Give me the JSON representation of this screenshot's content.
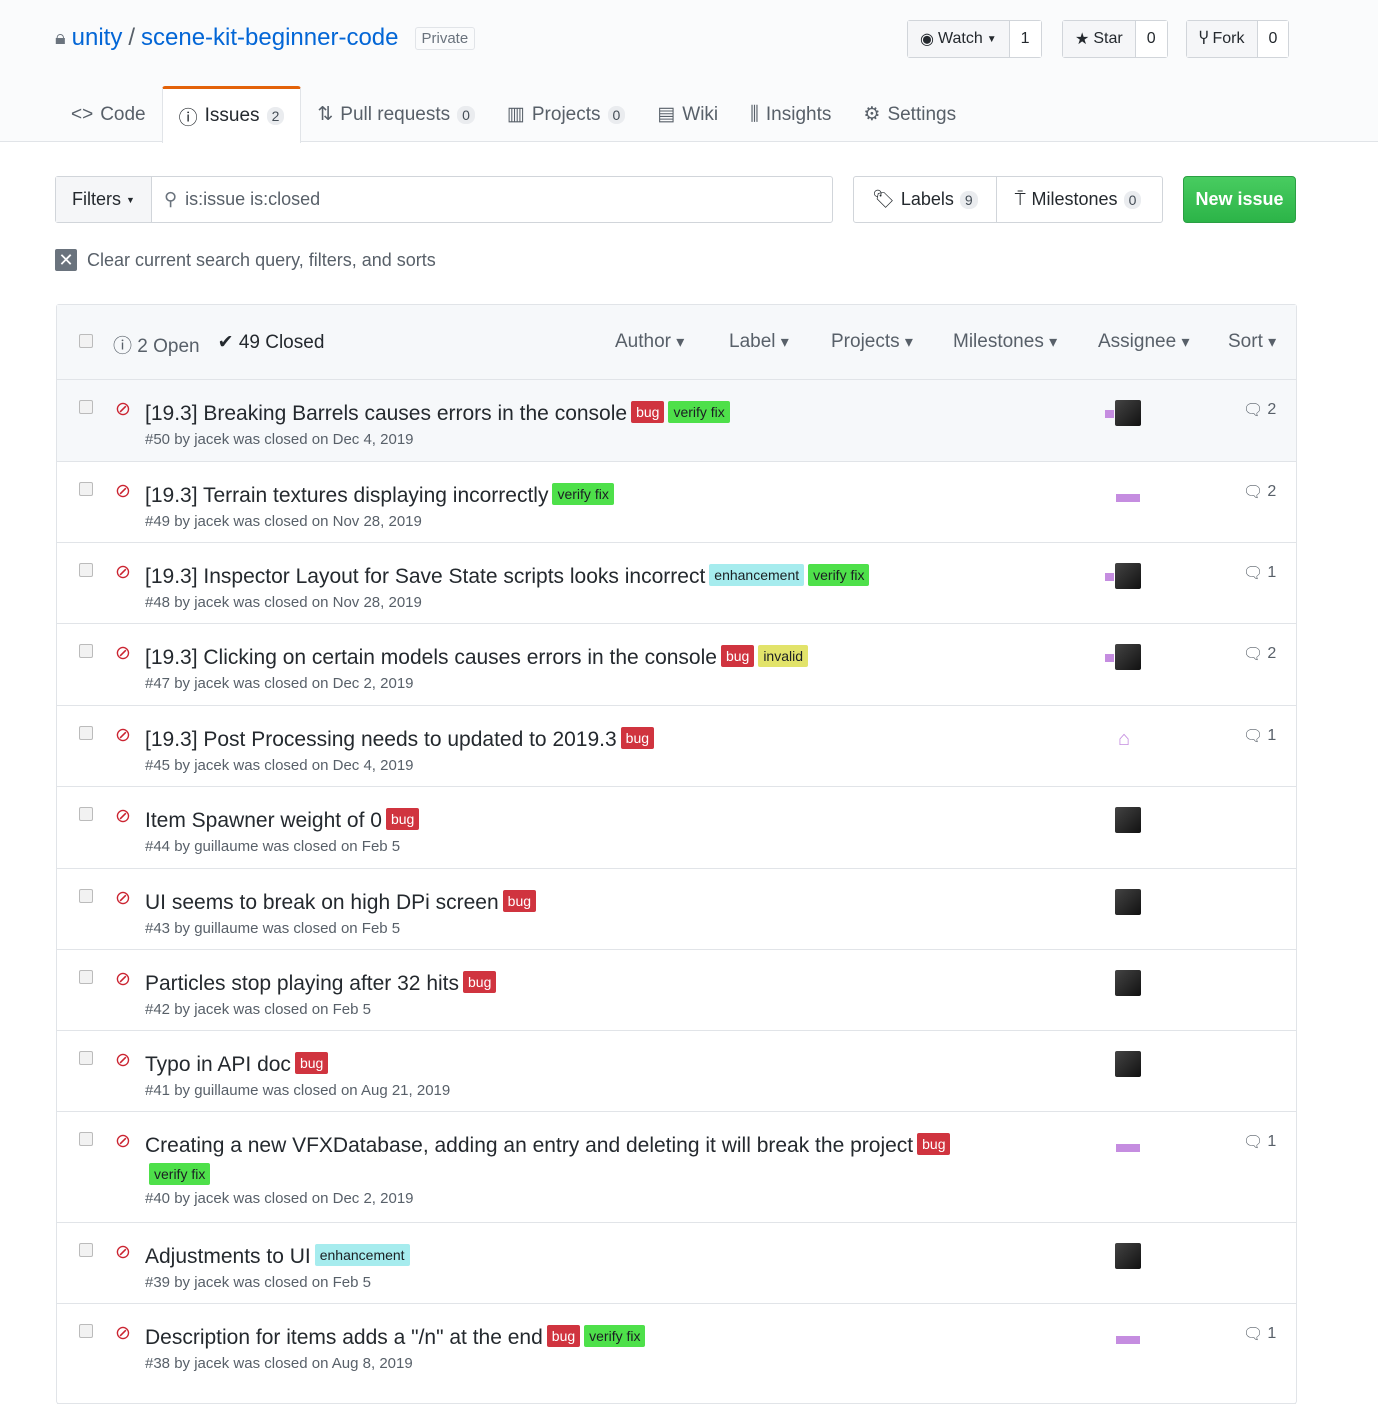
{
  "repo": {
    "owner": "unity",
    "separator": "/",
    "name": "scene-kit-beginner-code",
    "visibility": "Private"
  },
  "actions": {
    "watch": {
      "label": "Watch",
      "count": "1"
    },
    "star": {
      "label": "Star",
      "count": "0"
    },
    "fork": {
      "label": "Fork",
      "count": "0"
    }
  },
  "tabs": [
    {
      "label": "Code"
    },
    {
      "label": "Issues",
      "count": "2",
      "selected": true
    },
    {
      "label": "Pull requests",
      "count": "0"
    },
    {
      "label": "Projects",
      "count": "0"
    },
    {
      "label": "Wiki"
    },
    {
      "label": "Insights"
    },
    {
      "label": "Settings"
    }
  ],
  "filters": {
    "label": "Filters",
    "query": "is:issue is:closed"
  },
  "labels_btn": {
    "label": "Labels",
    "count": "9"
  },
  "milestones_btn": {
    "label": "Milestones",
    "count": "0"
  },
  "new_issue": "New issue",
  "clear": "Clear current search query, filters, and sorts",
  "list_header": {
    "open": "2 Open",
    "closed": "49 Closed",
    "dropdowns": [
      "Author",
      "Label",
      "Projects",
      "Milestones",
      "Assignee",
      "Sort"
    ]
  },
  "label_colors": {
    "bug": "#d0343f",
    "verify fix": "#4ee04a",
    "enhancement": "#a6ecee",
    "invalid": "#e2e36a"
  },
  "issues": [
    {
      "title": "[19.3] Breaking Barrels causes errors in the console",
      "labels": [
        "bug",
        "verify fix"
      ],
      "meta": "#50 by jacek was closed on Dec 4, 2019",
      "avatar": "pair",
      "comments": "2"
    },
    {
      "title": "[19.3] Terrain textures displaying incorrectly",
      "labels": [
        "verify fix"
      ],
      "meta": "#49 by jacek was closed on Nov 28, 2019",
      "avatar": "identicon",
      "comments": "2"
    },
    {
      "title": "[19.3] Inspector Layout for Save State scripts looks incorrect",
      "labels": [
        "enhancement",
        "verify fix"
      ],
      "meta": "#48 by jacek was closed on Nov 28, 2019",
      "avatar": "pair",
      "comments": "1"
    },
    {
      "title": "[19.3] Clicking on certain models causes errors in the console",
      "labels": [
        "bug",
        "invalid"
      ],
      "meta": "#47 by jacek was closed on Dec 2, 2019",
      "avatar": "pair",
      "comments": "2"
    },
    {
      "title": "[19.3] Post Processing needs to updated to 2019.3",
      "labels": [
        "bug"
      ],
      "meta": "#45 by jacek was closed on Dec 4, 2019",
      "avatar": "identicon2",
      "comments": "1"
    },
    {
      "title": "Item Spawner weight of 0",
      "labels": [
        "bug"
      ],
      "meta": "#44 by guillaume was closed on Feb 5",
      "avatar": "photo",
      "comments": ""
    },
    {
      "title": "UI seems to break on high DPi screen",
      "labels": [
        "bug"
      ],
      "meta": "#43 by guillaume was closed on Feb 5",
      "avatar": "photo",
      "comments": ""
    },
    {
      "title": "Particles stop playing after 32 hits",
      "labels": [
        "bug"
      ],
      "meta": "#42 by jacek was closed on Feb 5",
      "avatar": "photo",
      "comments": ""
    },
    {
      "title": "Typo in API doc",
      "labels": [
        "bug"
      ],
      "meta": "#41 by guillaume was closed on Aug 21, 2019",
      "avatar": "photo",
      "comments": ""
    },
    {
      "title": "Creating a new VFXDatabase, adding an entry and deleting it will break the project",
      "labels": [
        "bug",
        "verify fix"
      ],
      "meta": "#40 by jacek was closed on Dec 2, 2019",
      "avatar": "identicon",
      "comments": "1"
    },
    {
      "title": "Adjustments to UI",
      "labels": [
        "enhancement"
      ],
      "meta": "#39 by jacek was closed on Feb 5",
      "avatar": "photo",
      "comments": ""
    },
    {
      "title": "Description for items adds a \"/n\" at the end",
      "labels": [
        "bug",
        "verify fix"
      ],
      "meta": "#38 by jacek was closed on Aug 8, 2019",
      "avatar": "identicon",
      "comments": "1"
    }
  ]
}
